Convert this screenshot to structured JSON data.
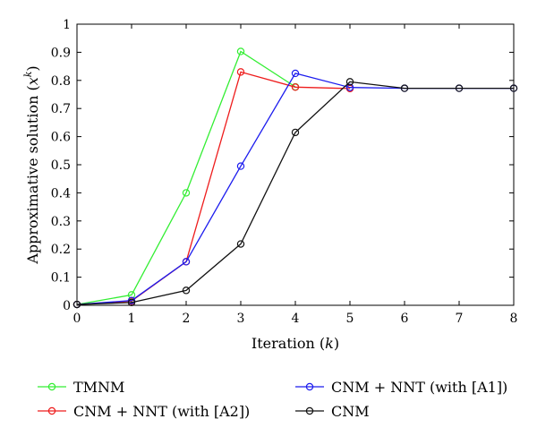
{
  "chart_data": {
    "type": "line",
    "xlabel": "Iteration (k)",
    "xlabel_parts": {
      "text": "Iteration (",
      "var": "k",
      "close": ")"
    },
    "ylabel": "Approximative solution (x^k)",
    "ylabel_parts": {
      "text": "Approximative solution (",
      "var": "x",
      "sup": "k",
      "close": ")"
    },
    "xlim": [
      0,
      8
    ],
    "ylim": [
      0,
      1
    ],
    "xticks": [
      "0",
      "1",
      "2",
      "3",
      "4",
      "5",
      "6",
      "7",
      "8"
    ],
    "yticks": [
      "0",
      "0.1",
      "0.2",
      "0.3",
      "0.4",
      "0.5",
      "0.6",
      "0.7",
      "0.8",
      "0.9",
      "1"
    ],
    "grid": false,
    "legend_placement": "below",
    "x": [
      0,
      1,
      2,
      3,
      4,
      5,
      6,
      7,
      8
    ],
    "series": [
      {
        "name": "TMNM",
        "color": "#33ee33",
        "marker": "circle",
        "x": [
          0,
          1,
          2,
          3,
          4
        ],
        "values": [
          0.003,
          0.037,
          0.4,
          0.903,
          0.777
        ]
      },
      {
        "name": "CNM + NNT (with [A2])",
        "color": "#ee1c1c",
        "marker": "circle",
        "x": [
          0,
          1,
          2,
          3,
          4,
          5
        ],
        "values": [
          0.003,
          0.015,
          0.155,
          0.83,
          0.776,
          0.771
        ]
      },
      {
        "name": "CNM + NNT (with [A1])",
        "color": "#1c1cee",
        "marker": "circle",
        "x": [
          0,
          1,
          2,
          3,
          4,
          5,
          6,
          7,
          8
        ],
        "values": [
          0.003,
          0.017,
          0.155,
          0.495,
          0.825,
          0.775,
          0.772,
          0.772,
          0.772
        ]
      },
      {
        "name": "CNM",
        "color": "#111111",
        "marker": "circle",
        "x": [
          0,
          1,
          2,
          3,
          4,
          5,
          6,
          7,
          8
        ],
        "values": [
          0.003,
          0.01,
          0.053,
          0.218,
          0.615,
          0.795,
          0.772,
          0.772,
          0.772
        ]
      }
    ]
  }
}
